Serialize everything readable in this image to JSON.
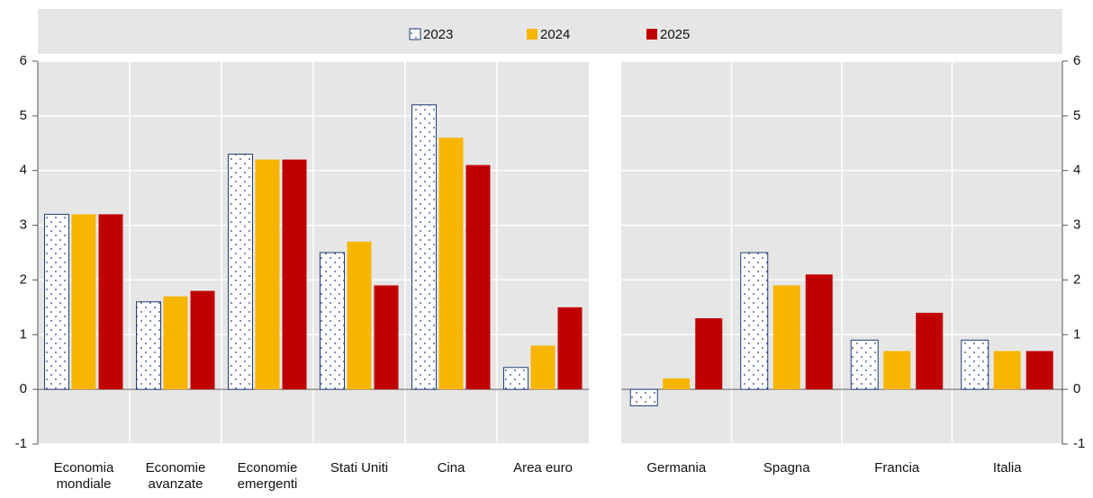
{
  "chart_data": [
    {
      "type": "bar",
      "side": "left",
      "categories": [
        "Economia mondiale",
        "Economie avanzate",
        "Economie emergenti",
        "Stati Uniti",
        "Cina",
        "Area euro"
      ],
      "series": [
        {
          "name": "2023",
          "color": "#1f3d7a",
          "pattern": "dots",
          "values": [
            3.2,
            1.6,
            4.3,
            2.5,
            5.2,
            0.4
          ]
        },
        {
          "name": "2024",
          "color": "#f7b500",
          "values": [
            3.2,
            1.7,
            4.2,
            2.7,
            4.6,
            0.8
          ]
        },
        {
          "name": "2025",
          "color": "#c00000",
          "values": [
            3.2,
            1.8,
            4.2,
            1.9,
            4.1,
            1.5
          ]
        }
      ],
      "ylim": [
        -1,
        6
      ],
      "yticks": [
        -1,
        0,
        1,
        2,
        3,
        4,
        5,
        6
      ],
      "grid": true
    },
    {
      "type": "bar",
      "side": "right",
      "categories": [
        "Germania",
        "Spagna",
        "Francia",
        "Italia"
      ],
      "series": [
        {
          "color": "#1f3d7a",
          "pattern": "dots",
          "values": [
            -0.3,
            2.5,
            0.9,
            0.9
          ]
        },
        {
          "color": "#f7b500",
          "values": [
            0.2,
            1.9,
            0.7,
            0.7
          ]
        },
        {
          "color": "#c00000",
          "values": [
            1.3,
            2.1,
            1.4,
            0.7
          ]
        }
      ],
      "ylim": [
        -1,
        6
      ],
      "yticks": [
        -1,
        0,
        1,
        2,
        3,
        4,
        5,
        6
      ],
      "grid": true
    }
  ]
}
